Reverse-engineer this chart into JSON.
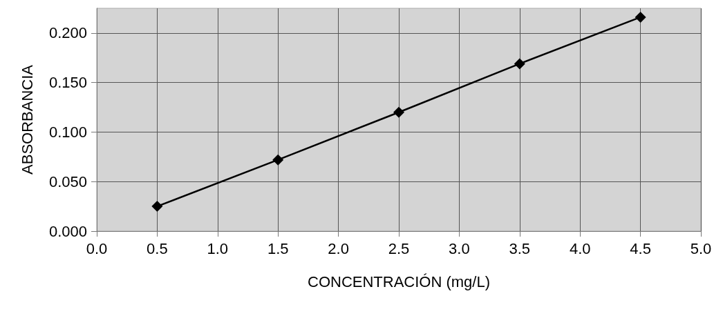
{
  "chart_data": {
    "type": "line",
    "xlabel": "CONCENTRACIÓN (mg/L)",
    "ylabel": "ABSORBANCIA",
    "x": [
      0.5,
      1.5,
      2.5,
      3.5,
      4.5
    ],
    "series": [
      {
        "color": "#000000",
        "values": [
          0.025,
          0.072,
          0.12,
          0.169,
          0.216
        ]
      }
    ],
    "xlim": [
      0,
      5
    ],
    "xticks": [
      {
        "value": 0,
        "label": "0.0"
      },
      {
        "value": 0.5,
        "label": "0.5"
      },
      {
        "value": 1,
        "label": "1.0"
      },
      {
        "value": 1.5,
        "label": "1.5"
      },
      {
        "value": 2,
        "label": "2.0"
      },
      {
        "value": 2.5,
        "label": "2.5"
      },
      {
        "value": 3,
        "label": "3.0"
      },
      {
        "value": 3.5,
        "label": "3.5"
      },
      {
        "value": 4,
        "label": "4.0"
      },
      {
        "value": 4.5,
        "label": "4.5"
      },
      {
        "value": 5,
        "label": "5.0"
      }
    ],
    "ylim": [
      0,
      0.225
    ],
    "yticks": [
      {
        "value": 0,
        "label": "0.000"
      },
      {
        "value": 0.05,
        "label": "0.050"
      },
      {
        "value": 0.1,
        "label": "0.100"
      },
      {
        "value": 0.15,
        "label": "0.150"
      },
      {
        "value": 0.2,
        "label": "0.200"
      }
    ],
    "grid": true,
    "marker": "diamond",
    "line_style": "solid"
  }
}
